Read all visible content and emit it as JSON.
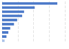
{
  "chart_data": {
    "type": "bar",
    "orientation": "horizontal",
    "categories": [
      null,
      null,
      null,
      null,
      null,
      null,
      null,
      null,
      null,
      null
    ],
    "values": [
      88,
      52,
      35,
      32,
      24,
      19,
      13,
      10,
      7,
      4
    ],
    "colors": [
      "#4a78c8",
      "#4a78c8",
      "#4a78c8",
      "#4a78c8",
      "#4a78c8",
      "#4a78c8",
      "#4a78c8",
      "#4a78c8",
      "#4a78c8",
      "#a9c1e8"
    ],
    "xlim": [
      0,
      100
    ],
    "xticks": [
      0,
      25,
      50,
      75,
      100
    ],
    "grid": true,
    "tick_labels": false
  }
}
